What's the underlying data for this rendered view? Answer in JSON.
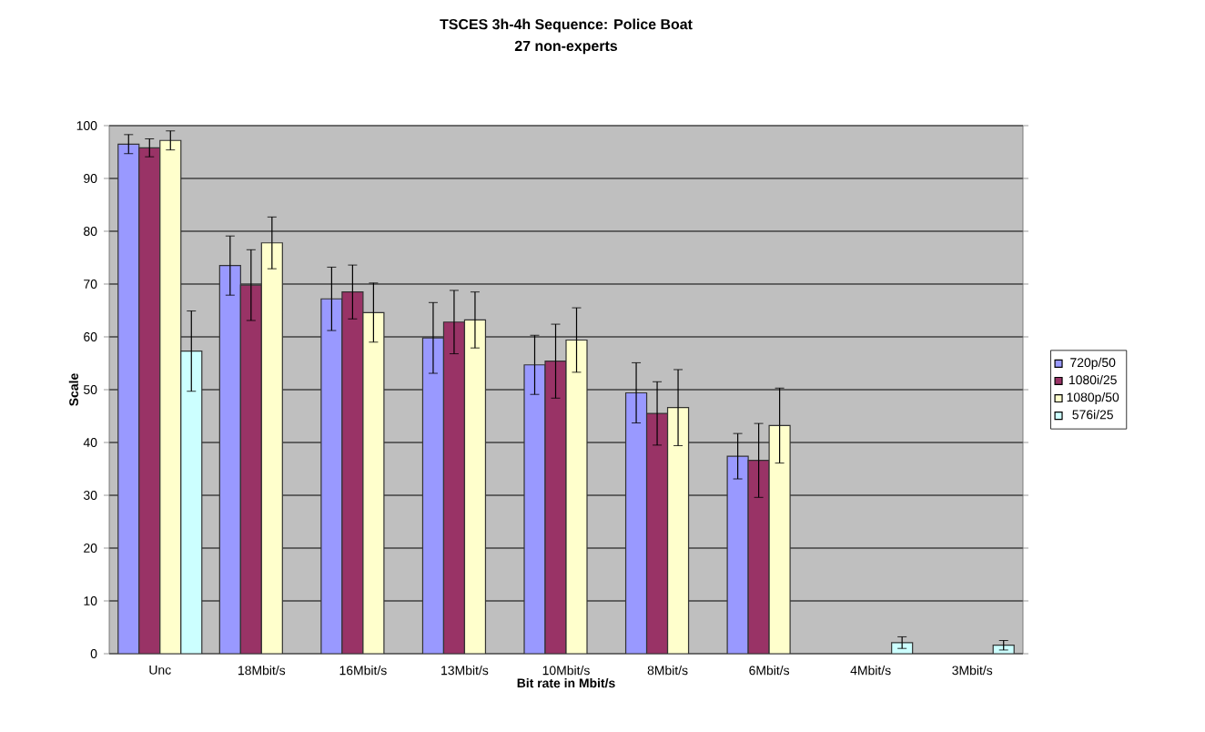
{
  "chart_data": {
    "type": "bar",
    "title": "TSCES 3h-4h Sequence: Police Boat",
    "subtitle": "27 non-experts",
    "xlabel": "Bit rate in Mbit/s",
    "ylabel": "Scale",
    "categories": [
      "Unc",
      "18Mbit/s",
      "16Mbit/s",
      "13Mbit/s",
      "10Mbit/s",
      "8Mbit/s",
      "6Mbit/s",
      "4Mbit/s",
      "3Mbit/s"
    ],
    "series": [
      {
        "name": "720p/50",
        "color": "#9999ff",
        "values": [
          96.5,
          73.5,
          67.2,
          59.8,
          54.7,
          49.4,
          37.4,
          null,
          null
        ],
        "errors": [
          1.8,
          5.6,
          6,
          6.7,
          5.6,
          5.7,
          4.3,
          null,
          null
        ]
      },
      {
        "name": "1080i/25",
        "color": "#993366",
        "values": [
          95.8,
          69.8,
          68.5,
          62.8,
          55.4,
          45.5,
          36.6,
          null,
          null
        ],
        "errors": [
          1.7,
          6.7,
          5.1,
          6,
          7,
          6,
          7,
          null,
          null
        ]
      },
      {
        "name": "1080p/50",
        "color": "#ffffcc",
        "values": [
          97.2,
          77.8,
          64.6,
          63.2,
          59.4,
          46.6,
          43.2,
          null,
          null
        ],
        "errors": [
          1.8,
          4.9,
          5.6,
          5.3,
          6.1,
          7.2,
          7.1,
          null,
          null
        ]
      },
      {
        "name": "576i/25",
        "color": "#ccffff",
        "values": [
          57.3,
          null,
          null,
          null,
          null,
          null,
          null,
          2.1,
          1.6
        ],
        "errors": [
          7.6,
          null,
          null,
          null,
          null,
          null,
          null,
          1.1,
          0.9
        ]
      }
    ],
    "ylim": [
      0,
      100
    ],
    "yticks": [
      0,
      10,
      20,
      30,
      40,
      50,
      60,
      70,
      80,
      90,
      100
    ],
    "grid": "y",
    "legend": "right"
  }
}
